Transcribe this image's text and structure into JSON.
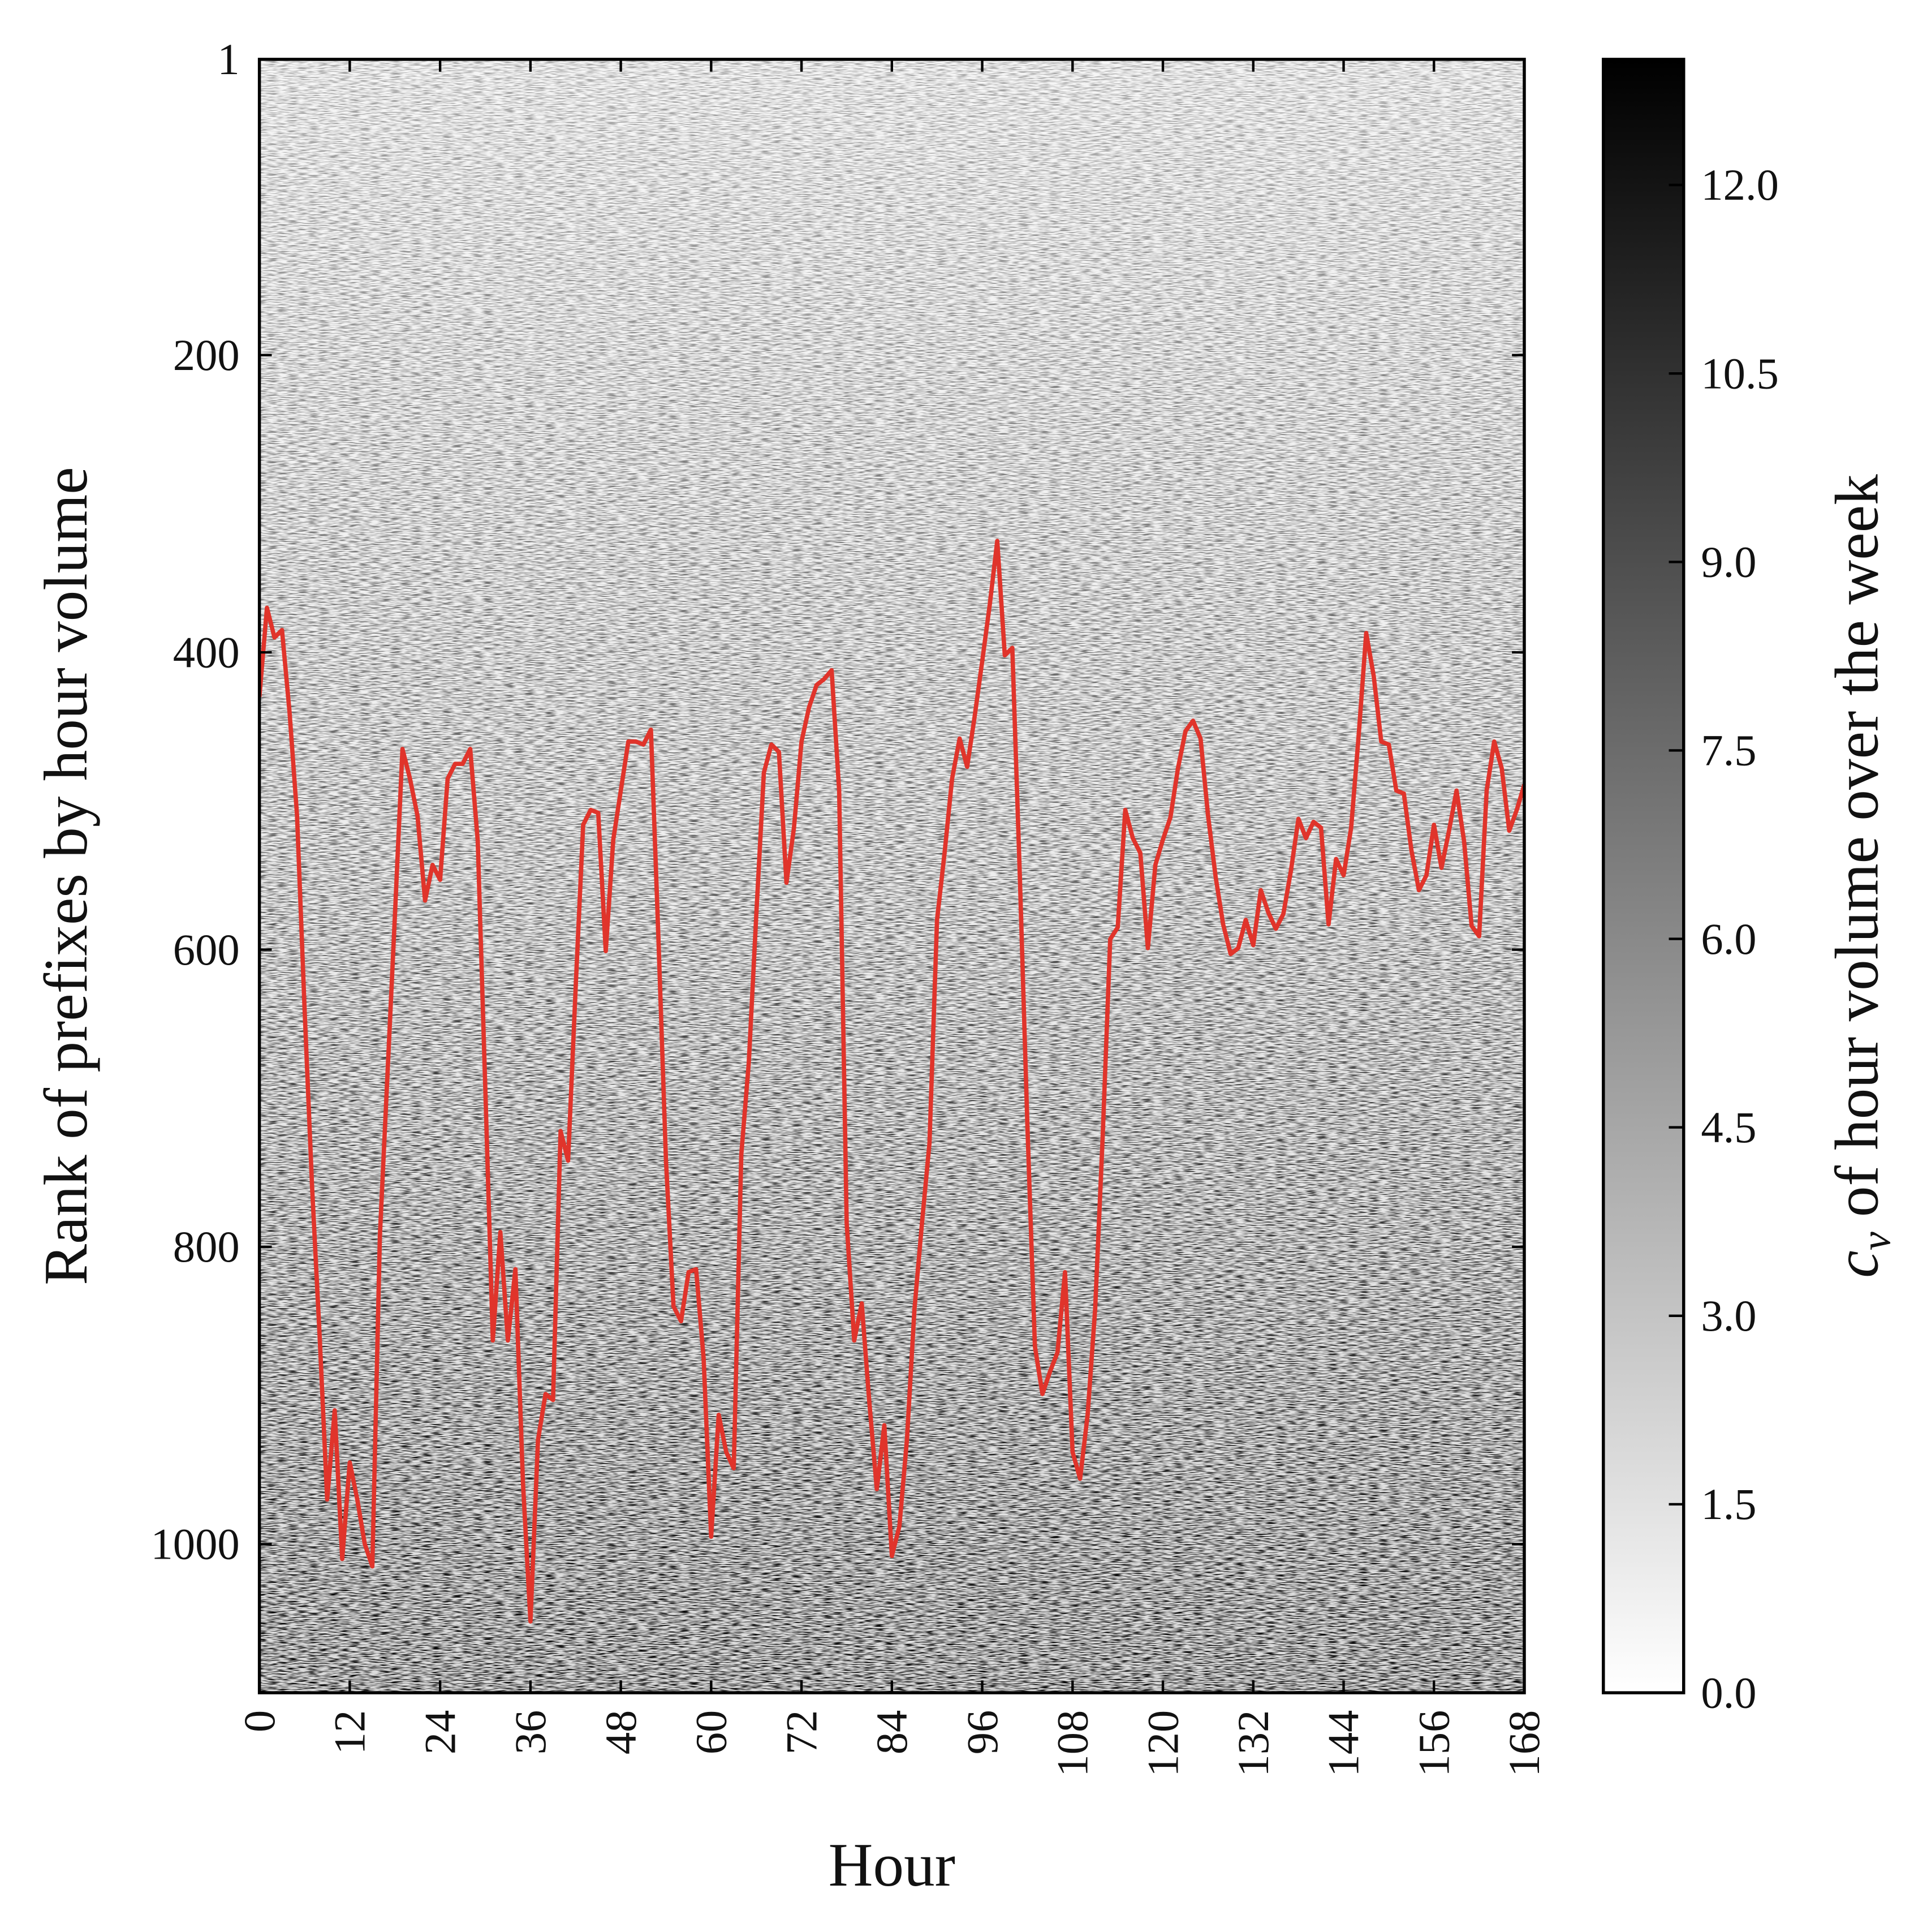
{
  "chart_data": {
    "type": "line",
    "xlabel": "Hour",
    "ylabel": "Rank of prefixes by hour volume",
    "x": [
      0,
      1,
      2,
      3,
      4,
      5,
      6,
      7,
      8,
      9,
      10,
      11,
      12,
      13,
      14,
      15,
      16,
      17,
      18,
      19,
      20,
      21,
      22,
      23,
      24,
      25,
      26,
      27,
      28,
      29,
      30,
      31,
      32,
      33,
      34,
      35,
      36,
      37,
      38,
      39,
      40,
      41,
      42,
      43,
      44,
      45,
      46,
      47,
      48,
      49,
      50,
      51,
      52,
      53,
      54,
      55,
      56,
      57,
      58,
      59,
      60,
      61,
      62,
      63,
      64,
      65,
      66,
      67,
      68,
      69,
      70,
      71,
      72,
      73,
      74,
      75,
      76,
      77,
      78,
      79,
      80,
      81,
      82,
      83,
      84,
      85,
      86,
      87,
      88,
      89,
      90,
      91,
      92,
      93,
      94,
      95,
      96,
      97,
      98,
      99,
      100,
      101,
      102,
      103,
      104,
      105,
      106,
      107,
      108,
      109,
      110,
      111,
      112,
      113,
      114,
      115,
      116,
      117,
      118,
      119,
      120,
      121,
      122,
      123,
      124,
      125,
      126,
      127,
      128,
      129,
      130,
      131,
      132,
      133,
      134,
      135,
      136,
      137,
      138,
      139,
      140,
      141,
      142,
      143,
      144,
      145,
      146,
      147,
      148,
      149,
      150,
      151,
      152,
      153,
      154,
      155,
      156,
      157,
      158,
      159,
      160,
      161,
      162,
      163,
      164,
      165,
      166,
      167,
      168
    ],
    "series": [
      {
        "color": "#e0342b",
        "values": [
          430,
          370,
          390,
          385,
          440,
          510,
          640,
          760,
          860,
          970,
          910,
          1010,
          945,
          970,
          1000,
          1015,
          793,
          685,
          577,
          465,
          485,
          510,
          567,
          543,
          553,
          485,
          475,
          475,
          465,
          527,
          693,
          863,
          790,
          863,
          815,
          958,
          1052,
          930,
          899,
          903,
          722,
          742,
          626,
          516,
          506,
          508,
          601,
          526,
          493,
          460,
          460,
          462,
          452,
          593,
          742,
          840,
          850,
          817,
          815,
          875,
          995,
          913,
          938,
          949,
          738,
          676,
          576,
          481,
          462,
          467,
          555,
          518,
          460,
          437,
          422,
          418,
          412,
          493,
          784,
          863,
          838,
          904,
          963,
          920,
          1008,
          988,
          930,
          842,
          784,
          730,
          580,
          535,
          485,
          458,
          477,
          443,
          406,
          368,
          325,
          402,
          397,
          551,
          718,
          867,
          899,
          884,
          871,
          817,
          938,
          956,
          913,
          842,
          726,
          593,
          585,
          506,
          525,
          535,
          599,
          543,
          526,
          511,
          478,
          453,
          446,
          458,
          510,
          551,
          583,
          603,
          599,
          580,
          597,
          560,
          575,
          586,
          576,
          547,
          512,
          525,
          514,
          518,
          583,
          539,
          550,
          518,
          456,
          387,
          416,
          460,
          462,
          493,
          495,
          533,
          560,
          550,
          516,
          545,
          520,
          493,
          527,
          584,
          591,
          493,
          460,
          478,
          520,
          506,
          489
        ]
      }
    ],
    "xlim": [
      0,
      168
    ],
    "xticks": [
      0,
      12,
      24,
      36,
      48,
      60,
      72,
      84,
      96,
      108,
      120,
      132,
      144,
      156,
      168
    ],
    "ylim": [
      1100,
      1
    ],
    "yticks": [
      1,
      200,
      400,
      600,
      800,
      1000
    ],
    "colorbar": {
      "label_symbol": "c",
      "label_subscript": "v",
      "label": "of hour volume over the week",
      "lim": [
        0,
        13
      ],
      "ticks": [
        {
          "value": 0,
          "label": "0.0"
        },
        {
          "value": 1.5,
          "label": "1.5"
        },
        {
          "value": 3,
          "label": "3.0"
        },
        {
          "value": 4.5,
          "label": "4.5"
        },
        {
          "value": 6,
          "label": "6.0"
        },
        {
          "value": 7.5,
          "label": "7.5"
        },
        {
          "value": 9,
          "label": "9.0"
        },
        {
          "value": 10.5,
          "label": "10.5"
        },
        {
          "value": 12,
          "label": "12.0"
        }
      ]
    }
  }
}
